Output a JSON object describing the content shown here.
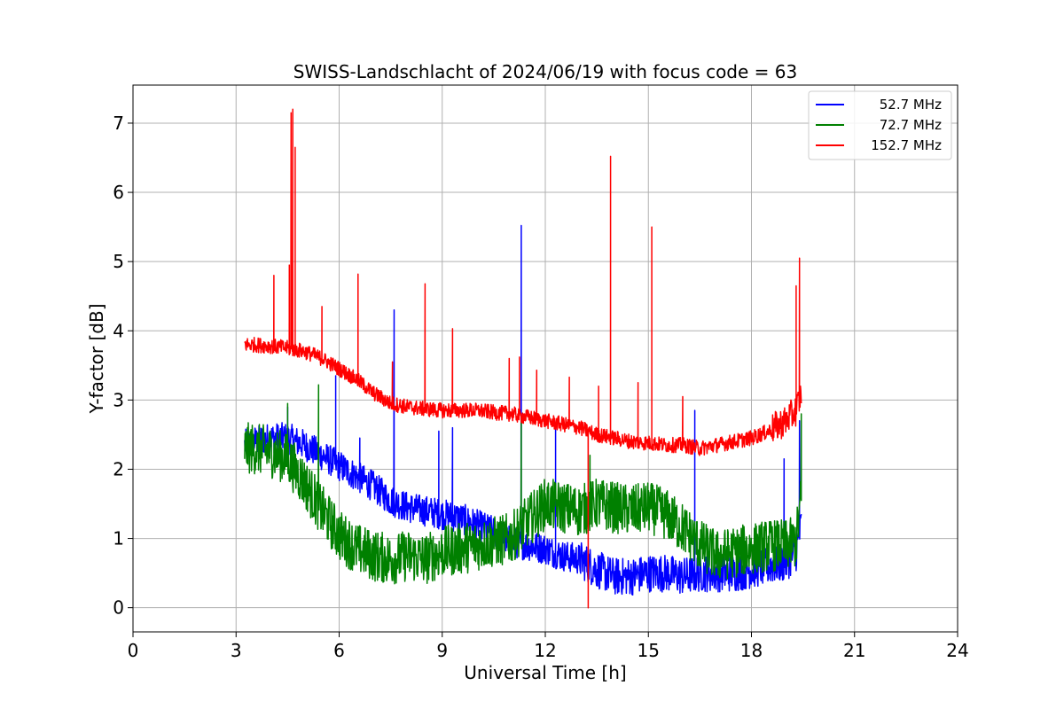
{
  "chart_data": {
    "type": "line",
    "title": "SWISS-Landschlacht of 2024/06/19 with focus code = 63",
    "xlabel": "Universal Time [h]",
    "ylabel": "Y-factor [dB]",
    "xlim": [
      0,
      24
    ],
    "ylim": [
      -0.35,
      7.55
    ],
    "xticks": [
      0,
      3,
      6,
      9,
      12,
      15,
      18,
      21,
      24
    ],
    "yticks": [
      0,
      1,
      2,
      3,
      4,
      5,
      6,
      7
    ],
    "grid": true,
    "legend_position": "top-right",
    "series": [
      {
        "name": "52.7 MHz",
        "color": "#0000ff",
        "x": [
          3.25,
          3.5,
          4.0,
          4.5,
          5.0,
          5.5,
          6.0,
          6.5,
          7.0,
          7.5,
          8.0,
          8.5,
          9.0,
          9.5,
          10.0,
          10.5,
          11.0,
          11.5,
          12.0,
          12.5,
          13.0,
          13.5,
          14.0,
          14.5,
          15.0,
          15.5,
          16.0,
          16.5,
          17.0,
          17.5,
          18.0,
          18.5,
          19.0,
          19.3,
          19.45
        ],
        "y": [
          2.35,
          2.4,
          2.45,
          2.45,
          2.35,
          2.2,
          2.05,
          1.9,
          1.75,
          1.55,
          1.45,
          1.4,
          1.35,
          1.3,
          1.2,
          1.1,
          0.95,
          0.9,
          0.85,
          0.75,
          0.7,
          0.55,
          0.45,
          0.45,
          0.5,
          0.5,
          0.45,
          0.5,
          0.5,
          0.5,
          0.55,
          0.6,
          0.65,
          0.8,
          1.2
        ],
        "spikes": [
          [
            4.5,
            2.9
          ],
          [
            5.9,
            3.35
          ],
          [
            6.6,
            2.45
          ],
          [
            7.6,
            4.3
          ],
          [
            8.9,
            2.55
          ],
          [
            9.3,
            2.6
          ],
          [
            11.3,
            5.52
          ],
          [
            12.3,
            2.6
          ],
          [
            16.35,
            2.85
          ],
          [
            18.95,
            2.15
          ],
          [
            19.4,
            2.7
          ]
        ]
      },
      {
        "name": "72.7 MHz",
        "color": "#008000",
        "x": [
          3.25,
          3.5,
          4.0,
          4.5,
          5.0,
          5.5,
          6.0,
          6.5,
          7.0,
          7.5,
          8.0,
          8.5,
          9.0,
          9.5,
          10.0,
          10.5,
          11.0,
          11.5,
          12.0,
          12.5,
          13.0,
          13.5,
          14.0,
          14.5,
          15.0,
          15.5,
          16.0,
          16.5,
          17.0,
          17.5,
          18.0,
          18.5,
          19.0,
          19.3,
          19.45
        ],
        "y": [
          2.3,
          2.3,
          2.25,
          2.15,
          1.8,
          1.4,
          1.05,
          0.85,
          0.75,
          0.7,
          0.75,
          0.7,
          0.8,
          0.85,
          0.9,
          0.95,
          1.0,
          1.25,
          1.5,
          1.45,
          1.4,
          1.5,
          1.45,
          1.4,
          1.45,
          1.35,
          1.15,
          0.9,
          0.75,
          0.8,
          0.85,
          0.9,
          0.9,
          0.95,
          1.6
        ],
        "spikes": [
          [
            4.5,
            2.95
          ],
          [
            5.4,
            3.22
          ],
          [
            11.3,
            2.75
          ],
          [
            13.3,
            2.2
          ],
          [
            19.45,
            2.8
          ]
        ]
      },
      {
        "name": "152.7 MHz",
        "color": "#ff0000",
        "x": [
          3.25,
          3.5,
          4.0,
          4.5,
          5.0,
          5.5,
          6.0,
          6.5,
          7.0,
          7.5,
          8.0,
          8.5,
          9.0,
          9.5,
          10.0,
          10.5,
          11.0,
          11.5,
          12.0,
          12.5,
          13.0,
          13.5,
          14.0,
          14.5,
          15.0,
          15.5,
          16.0,
          16.5,
          17.0,
          17.5,
          18.0,
          18.5,
          19.0,
          19.3,
          19.45
        ],
        "y": [
          3.8,
          3.8,
          3.78,
          3.75,
          3.7,
          3.6,
          3.45,
          3.3,
          3.1,
          2.95,
          2.9,
          2.87,
          2.85,
          2.85,
          2.85,
          2.82,
          2.8,
          2.75,
          2.7,
          2.65,
          2.6,
          2.5,
          2.45,
          2.4,
          2.38,
          2.35,
          2.35,
          2.3,
          2.35,
          2.4,
          2.45,
          2.55,
          2.7,
          2.85,
          3.1
        ],
        "spikes": [
          [
            4.1,
            4.8
          ],
          [
            4.55,
            4.95
          ],
          [
            4.6,
            7.15
          ],
          [
            4.65,
            7.2
          ],
          [
            4.72,
            6.65
          ],
          [
            5.5,
            4.35
          ],
          [
            6.55,
            4.82
          ],
          [
            7.55,
            3.55
          ],
          [
            8.5,
            4.68
          ],
          [
            9.3,
            4.03
          ],
          [
            10.95,
            3.6
          ],
          [
            11.25,
            3.62
          ],
          [
            11.75,
            3.43
          ],
          [
            12.7,
            3.33
          ],
          [
            13.55,
            3.2
          ],
          [
            13.9,
            6.52
          ],
          [
            14.7,
            3.25
          ],
          [
            15.1,
            5.5
          ],
          [
            16.0,
            3.05
          ],
          [
            19.3,
            4.65
          ],
          [
            19.4,
            5.05
          ]
        ],
        "dips": [
          [
            13.25,
            0.0
          ]
        ]
      }
    ]
  }
}
